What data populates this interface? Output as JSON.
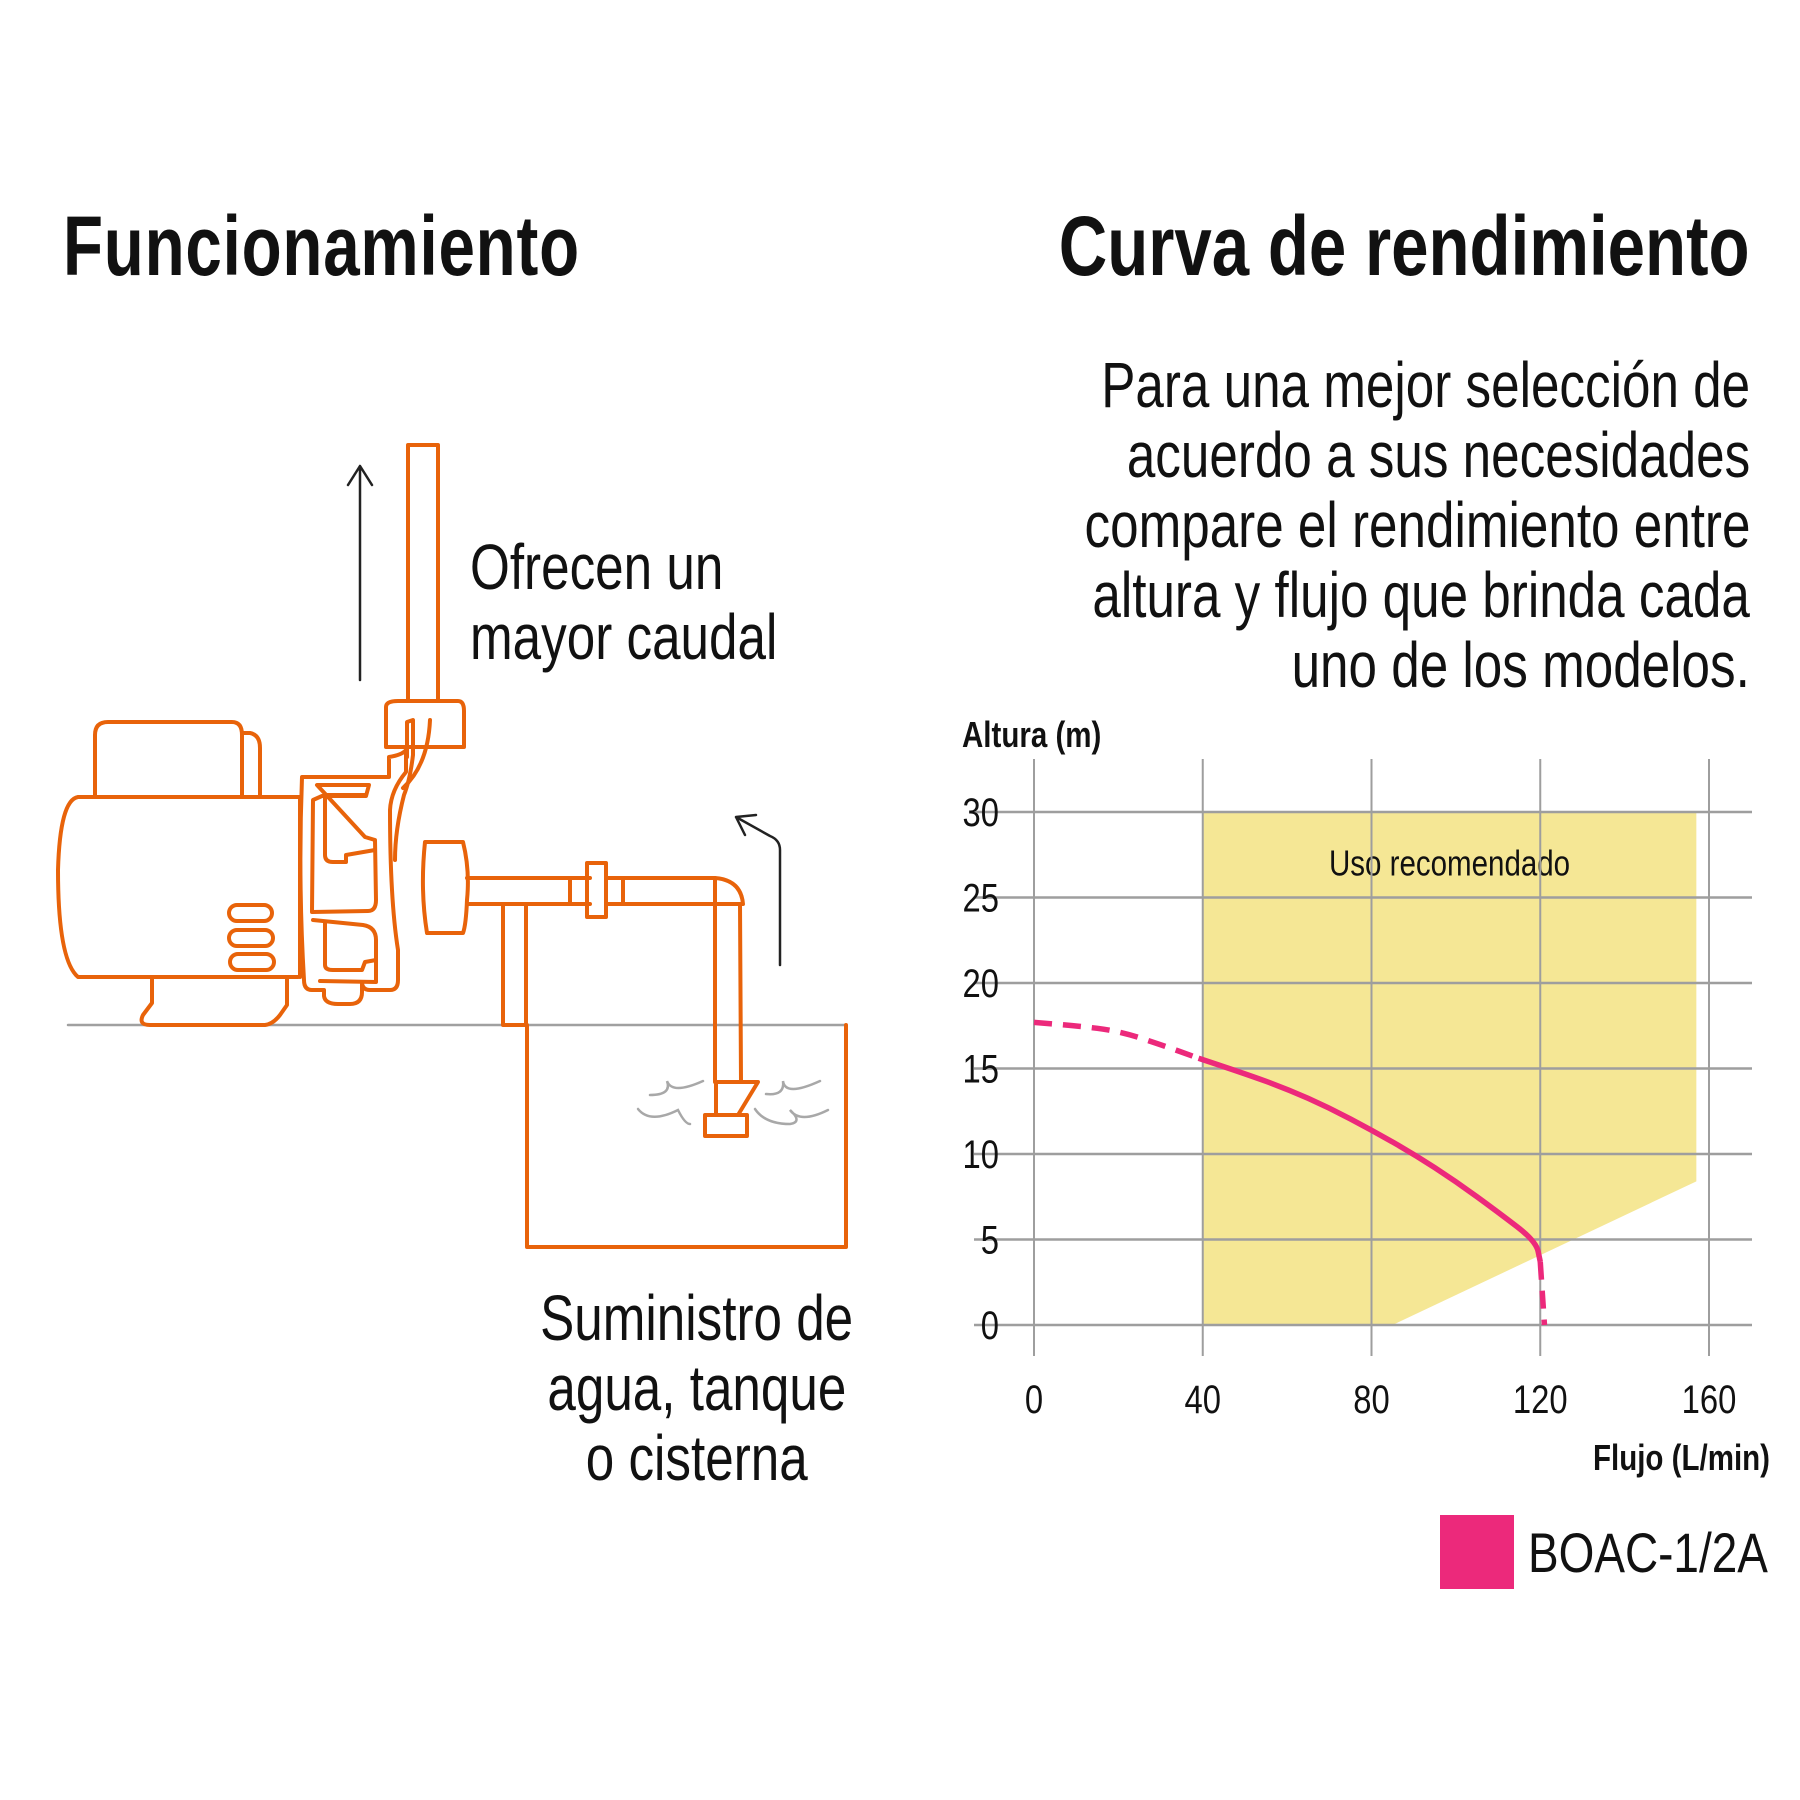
{
  "left_panel": {
    "title": "Funcionamiento",
    "offer_text": [
      "Ofrecen un",
      "mayor caudal"
    ],
    "supply_text": [
      "Suministro de",
      "agua, tanque",
      "o cisterna"
    ],
    "illustration": {
      "subject": "centrifugal-pump-diagram",
      "line_color": "#E8630A",
      "water_color": "#A8A8A8",
      "arrow_color": "#222222",
      "ground_color": "#A0A0A0"
    }
  },
  "right_panel": {
    "title": "Curva de rendimiento",
    "intro_lines": [
      "Para una mejor selección de",
      "acuerdo a sus necesidades",
      "compare el rendimiento entre",
      "altura y flujo que brinda cada",
      "uno de los modelos."
    ]
  },
  "legend": {
    "items": [
      {
        "label": "BOAC-1/2A",
        "color": "#EC297B"
      }
    ]
  },
  "colors": {
    "curve": "#EC297B",
    "recommended_zone": "#F5E795",
    "grid": "#9E9E9E",
    "text": "#111111"
  },
  "chart_data": {
    "type": "line",
    "title": "Curva de rendimiento",
    "xlabel": "Flujo (L/min)",
    "ylabel": "Altura (m)",
    "xlim": [
      0,
      160
    ],
    "ylim": [
      0,
      30
    ],
    "x_ticks": [
      0,
      40,
      80,
      120,
      160
    ],
    "y_ticks": [
      0,
      5,
      10,
      15,
      20,
      25,
      30
    ],
    "grid": true,
    "legend_position": "bottom-right",
    "annotations": [
      {
        "text": "Uso recomendado",
        "type": "shaded-region",
        "polygon": [
          [
            40,
            30
          ],
          [
            157,
            30
          ],
          [
            157,
            8.4
          ],
          [
            85,
            0
          ],
          [
            40,
            0
          ]
        ],
        "color": "#F5E795"
      }
    ],
    "series": [
      {
        "name": "BOAC-1/2A",
        "color": "#EC297B",
        "segments": [
          {
            "style": "dashed",
            "points": [
              [
                0,
                17.7
              ],
              [
                10,
                17.5
              ],
              [
                20,
                17.2
              ],
              [
                30,
                16.4
              ],
              [
                39,
                15.6
              ]
            ]
          },
          {
            "style": "solid",
            "points": [
              [
                39,
                15.6
              ],
              [
                50,
                14.7
              ],
              [
                60,
                13.8
              ],
              [
                70,
                12.7
              ],
              [
                80,
                11.4
              ],
              [
                90,
                10.0
              ],
              [
                100,
                8.4
              ],
              [
                110,
                6.6
              ],
              [
                119,
                4.9
              ],
              [
                120,
                3.7
              ]
            ]
          },
          {
            "style": "dashed",
            "points": [
              [
                120,
                3.7
              ],
              [
                121,
                0
              ]
            ]
          }
        ]
      }
    ]
  }
}
